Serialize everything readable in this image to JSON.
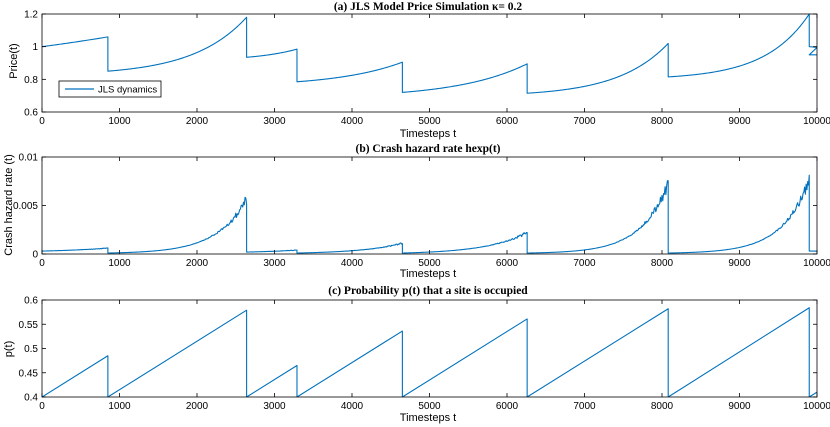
{
  "chart_data": [
    {
      "type": "line",
      "title": "(a) JLS Model Price Simulation κ= 0.2",
      "xlabel": "Timesteps t",
      "ylabel": "Price(t)",
      "xlim": [
        0,
        10000
      ],
      "ylim": [
        0.6,
        1.2
      ],
      "xticks": [
        0,
        1000,
        2000,
        3000,
        4000,
        5000,
        6000,
        7000,
        8000,
        9000,
        10000
      ],
      "xtick_labels": [
        "0",
        "1000",
        "2000",
        "3000",
        "4000",
        "5000",
        "6000",
        "7000",
        "8000",
        "9000",
        "10000"
      ],
      "yticks": [
        0.6,
        0.8,
        1.0,
        1.2
      ],
      "ytick_labels": [
        "0.6",
        "0.8",
        "1",
        "1.2"
      ],
      "legend": {
        "entries": [
          "JLS dynamics"
        ],
        "location": "bottom-left"
      },
      "series": [
        {
          "name": "JLS dynamics",
          "segments": [
            {
              "start": 0,
              "end": 850,
              "y0": 1.0,
              "y1": 1.06,
              "curvature": 0.25
            },
            {
              "start": 850,
              "end": 2640,
              "y0": 0.85,
              "y1": 1.18,
              "curvature": 2.6
            },
            {
              "start": 2640,
              "end": 3290,
              "y0": 0.935,
              "y1": 0.985,
              "curvature": 1.2
            },
            {
              "start": 3290,
              "end": 4650,
              "y0": 0.785,
              "y1": 0.905,
              "curvature": 1.6
            },
            {
              "start": 4650,
              "end": 6260,
              "y0": 0.72,
              "y1": 0.895,
              "curvature": 1.8
            },
            {
              "start": 6260,
              "end": 8080,
              "y0": 0.715,
              "y1": 1.02,
              "curvature": 2.8
            },
            {
              "start": 8080,
              "end": 9900,
              "y0": 0.815,
              "y1": 1.2,
              "curvature": 3.2
            },
            {
              "start": 9900,
              "end": 10000,
              "y0": 1.0,
              "y1": 0.995,
              "curvature": 1.0
            }
          ],
          "points_tail": [
            [
              9900,
              0.95
            ],
            [
              10000,
              0.95
            ]
          ]
        }
      ]
    },
    {
      "type": "line",
      "title": "(b) Crash hazard rate hexp(t)",
      "xlabel": "Timesteps t",
      "ylabel": "Crash hazard rate (t)",
      "xlim": [
        0,
        10000
      ],
      "ylim": [
        0,
        0.01
      ],
      "xticks": [
        0,
        1000,
        2000,
        3000,
        4000,
        5000,
        6000,
        7000,
        8000,
        9000,
        10000
      ],
      "xtick_labels": [
        "0",
        "1000",
        "2000",
        "3000",
        "4000",
        "5000",
        "6000",
        "7000",
        "8000",
        "9000",
        "10000"
      ],
      "yticks": [
        0,
        0.005,
        0.01
      ],
      "ytick_labels": [
        "0",
        "0.005",
        "0.01"
      ],
      "series": [
        {
          "name": "hazard rate",
          "segments": [
            {
              "start": 0,
              "end": 850,
              "y0": 0.0003,
              "y1": 0.0006,
              "curvature": 1.0,
              "noise": 5e-05
            },
            {
              "start": 850,
              "end": 2640,
              "y0": 0.0001,
              "y1": 0.0056,
              "curvature": 4.5,
              "noise": 0.0006
            },
            {
              "start": 2640,
              "end": 3290,
              "y0": 0.0002,
              "y1": 0.0004,
              "curvature": 1.0,
              "noise": 4e-05
            },
            {
              "start": 3290,
              "end": 4650,
              "y0": 0.0001,
              "y1": 0.0011,
              "curvature": 2.5,
              "noise": 0.0001
            },
            {
              "start": 4650,
              "end": 6260,
              "y0": 0.0001,
              "y1": 0.0022,
              "curvature": 3.0,
              "noise": 0.0002
            },
            {
              "start": 6260,
              "end": 8080,
              "y0": 0.0001,
              "y1": 0.0072,
              "curvature": 5.0,
              "noise": 0.0008
            },
            {
              "start": 8080,
              "end": 9900,
              "y0": 0.0001,
              "y1": 0.0075,
              "curvature": 5.0,
              "noise": 0.0008
            },
            {
              "start": 9900,
              "end": 10000,
              "y0": 0.0003,
              "y1": 0.0003,
              "curvature": 1.0,
              "noise": 3e-05
            }
          ]
        }
      ]
    },
    {
      "type": "line",
      "title": "(c) Probability p(t) that a site is occupied",
      "xlabel": "Timesteps t",
      "ylabel": "p(t)",
      "xlim": [
        0,
        10000
      ],
      "ylim": [
        0.4,
        0.6
      ],
      "xticks": [
        0,
        1000,
        2000,
        3000,
        4000,
        5000,
        6000,
        7000,
        8000,
        9000,
        10000
      ],
      "xtick_labels": [
        "0",
        "1000",
        "2000",
        "3000",
        "4000",
        "5000",
        "6000",
        "7000",
        "8000",
        "9000",
        "10000"
      ],
      "yticks": [
        0.4,
        0.45,
        0.5,
        0.55,
        0.6
      ],
      "ytick_labels": [
        "0.4",
        "0.45",
        "0.5",
        "0.55",
        "0.6"
      ],
      "series": [
        {
          "name": "p(t)",
          "points": [
            [
              0,
              0.4
            ],
            [
              850,
              0.485
            ],
            [
              850,
              0.4
            ],
            [
              2640,
              0.579
            ],
            [
              2640,
              0.4
            ],
            [
              3290,
              0.465
            ],
            [
              3290,
              0.4
            ],
            [
              4650,
              0.536
            ],
            [
              4650,
              0.4
            ],
            [
              6260,
              0.561
            ],
            [
              6260,
              0.4
            ],
            [
              8080,
              0.582
            ],
            [
              8080,
              0.4
            ],
            [
              9900,
              0.584
            ],
            [
              9900,
              0.4
            ],
            [
              10000,
              0.41
            ]
          ]
        }
      ]
    }
  ]
}
